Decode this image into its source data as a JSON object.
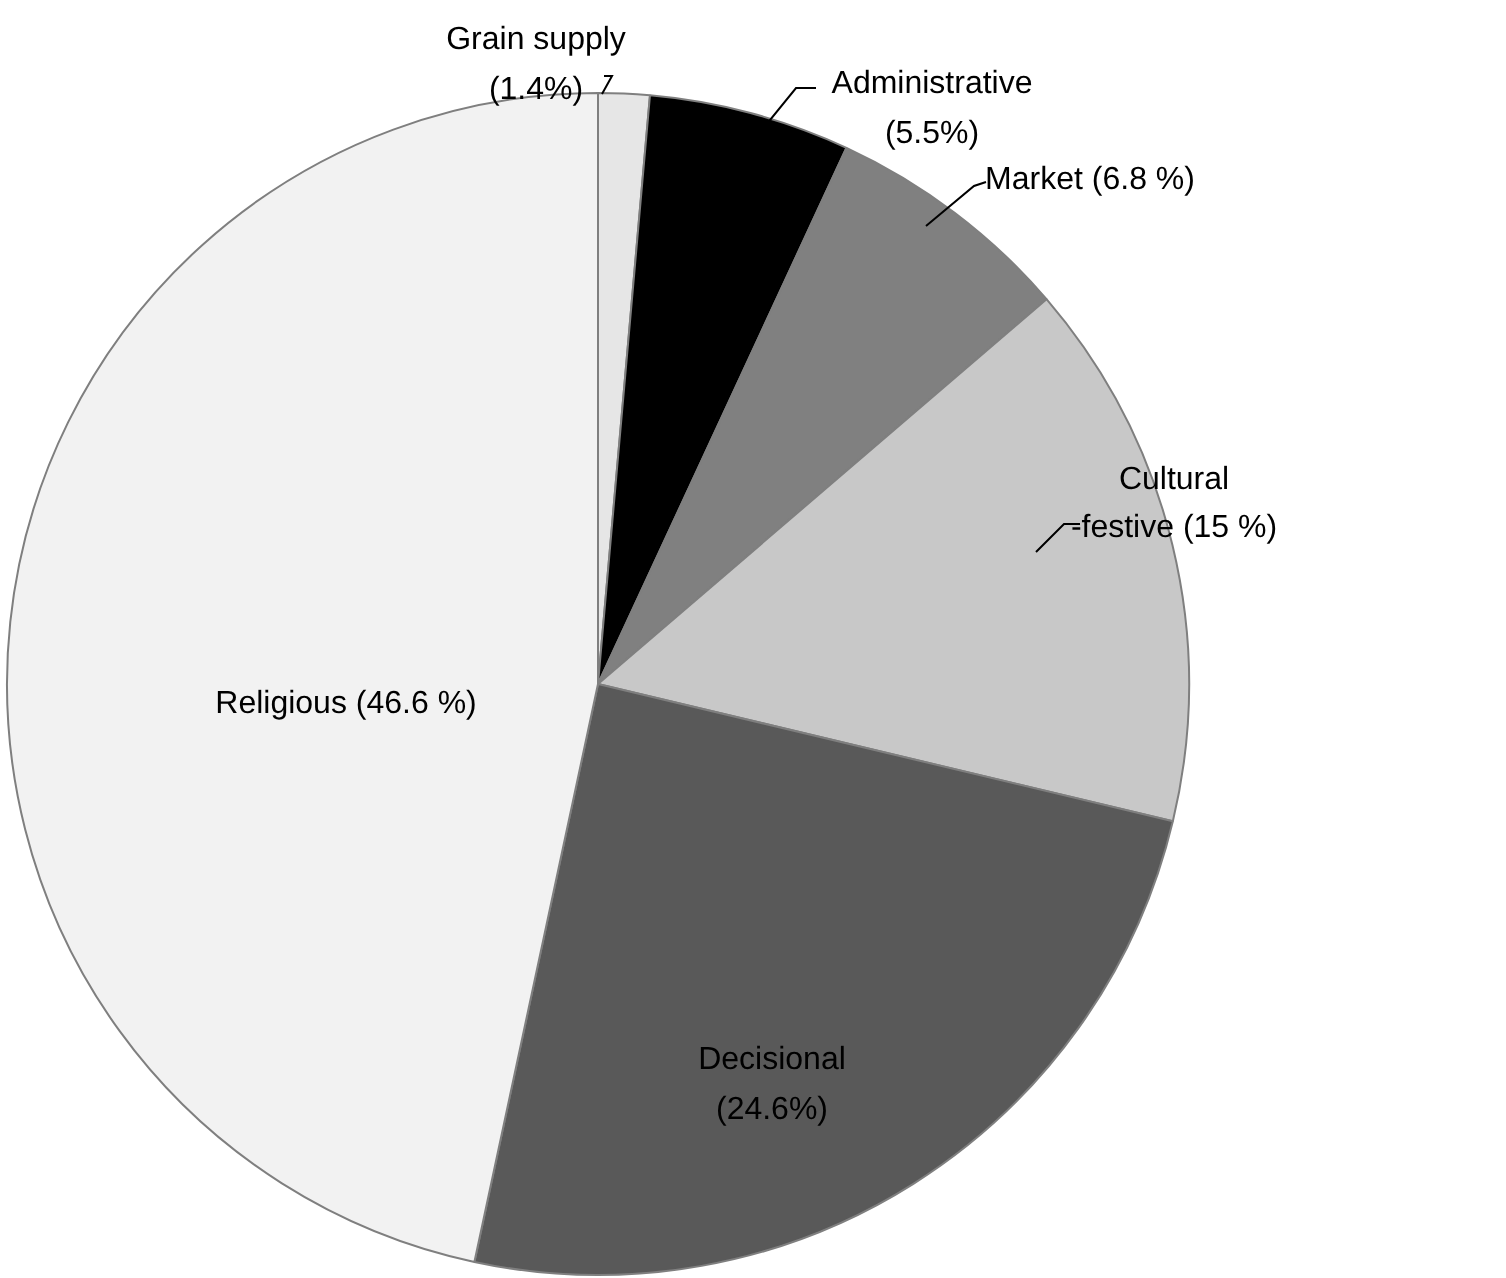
{
  "chart_data": {
    "type": "pie",
    "categories": [
      "Grain supply",
      "Administrative",
      "Market",
      "Cultural -festive",
      "Decisional",
      "Religious"
    ],
    "values": [
      1.4,
      5.5,
      6.8,
      15,
      24.6,
      46.6
    ],
    "colors": [
      "#e6e6e6",
      "#000000",
      "#808080",
      "#c8c8c8",
      "#595959",
      "#f2f2f2"
    ],
    "value_labels": [
      "(1.4%)",
      "(5.5%)",
      "(6.8 %)",
      "(15 %)",
      "(24.6%)",
      "(46.6 %)"
    ],
    "legend": false
  }
}
